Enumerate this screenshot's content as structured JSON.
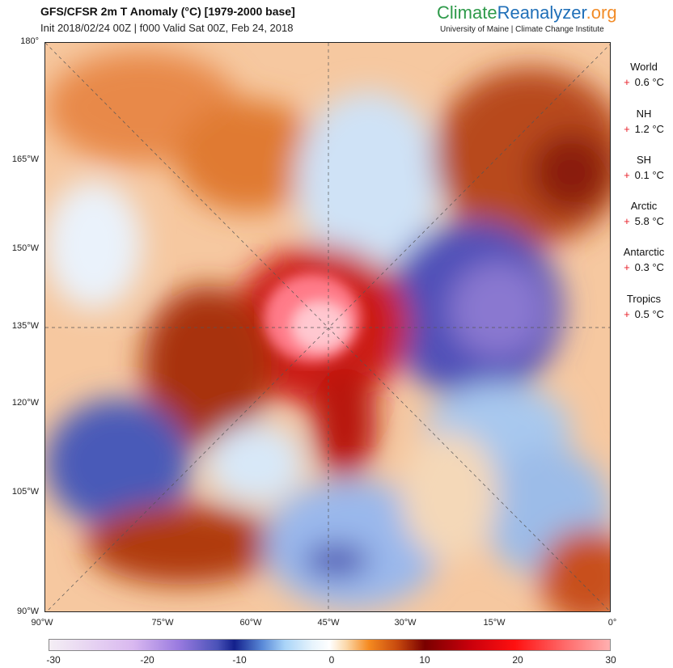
{
  "header": {
    "title": "GFS/CFSR 2m T Anomaly (°C) [1979-2000 base]",
    "subtitle": "Init 2018/02/24 00Z | f000 Valid Sat 00Z, Feb 24, 2018"
  },
  "logo": {
    "part1": "Climate",
    "part2": "Reanalyzer",
    "part3": ".org",
    "institution": "University of Maine | Climate Change Institute"
  },
  "left_axis": [
    "180°",
    "165°W",
    "150°W",
    "135°W",
    "120°W",
    "105°W",
    "90°W"
  ],
  "bottom_axis": [
    "90°W",
    "75°W",
    "60°W",
    "45°W",
    "30°W",
    "15°W",
    "0°"
  ],
  "stats": [
    {
      "region": "World",
      "sign": "+",
      "value": "0.6 °C"
    },
    {
      "region": "NH",
      "sign": "+",
      "value": "1.2 °C"
    },
    {
      "region": "SH",
      "sign": "+",
      "value": "0.1 °C"
    },
    {
      "region": "Arctic",
      "sign": "+",
      "value": "5.8 °C"
    },
    {
      "region": "Antarctic",
      "sign": "+",
      "value": "0.3 °C"
    },
    {
      "region": "Tropics",
      "sign": "+",
      "value": "0.5 °C"
    }
  ],
  "colorbar": {
    "ticks": [
      "-30",
      "-20",
      "-10",
      "0",
      "10",
      "20",
      "30"
    ],
    "range": [
      -30,
      30
    ]
  }
}
